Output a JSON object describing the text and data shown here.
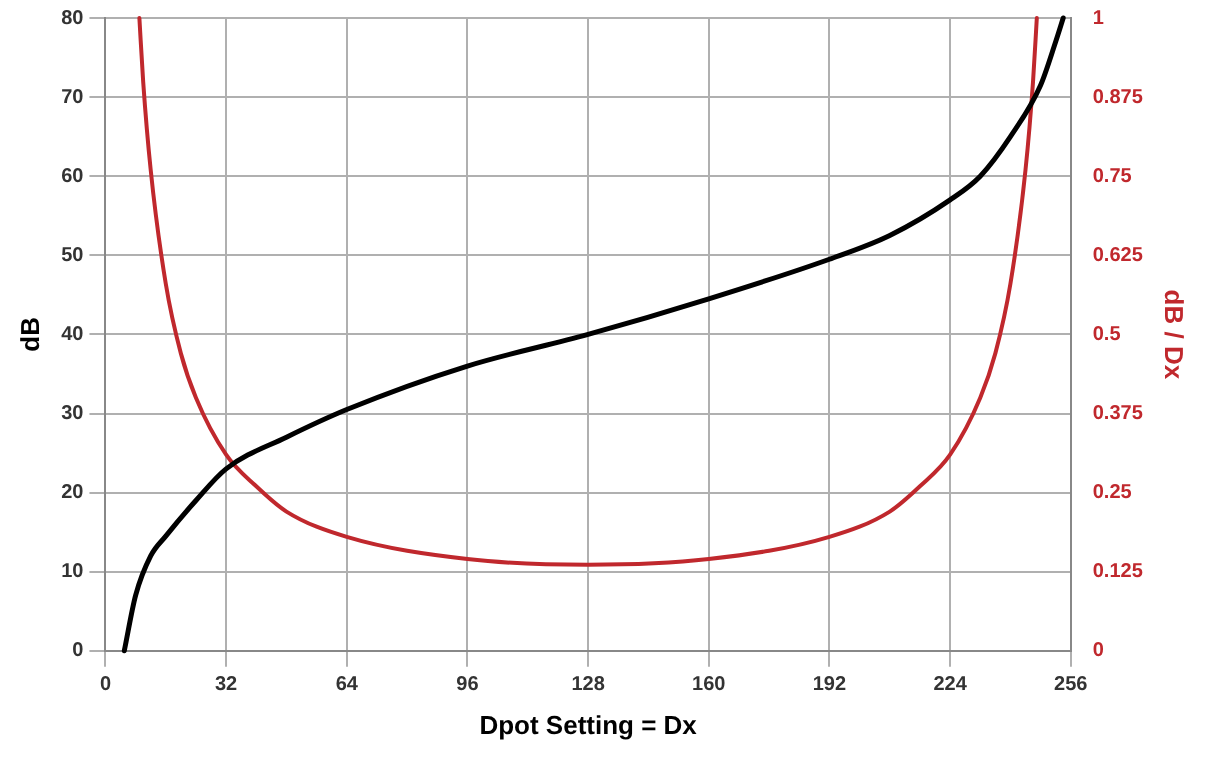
{
  "chart_data": {
    "type": "line",
    "xlabel": "Dpot Setting = Dx",
    "ylabel": "dB",
    "y2label": "dB / Dx",
    "xlim": [
      0,
      256
    ],
    "xticks": [
      0,
      32,
      64,
      96,
      128,
      160,
      192,
      224,
      256
    ],
    "ylim": [
      0,
      80
    ],
    "yticks": [
      0,
      10,
      20,
      30,
      40,
      50,
      60,
      70,
      80
    ],
    "y2lim": [
      0,
      1
    ],
    "y2ticks": [
      0,
      0.125,
      0.25,
      0.375,
      0.5,
      0.625,
      0.75,
      0.875,
      1
    ],
    "grid": true,
    "legend": false,
    "marker": "none",
    "line_style": "solid",
    "series": [
      {
        "color": "#000000",
        "x": [
          5,
          8,
          12,
          16,
          24,
          32,
          48,
          64,
          96,
          128,
          160,
          192,
          208,
          224,
          232,
          240,
          248,
          252,
          254
        ],
        "values": [
          0,
          7,
          12,
          14.5,
          19,
          23,
          27,
          30.5,
          36,
          40,
          44.5,
          49.5,
          52.5,
          57,
          60,
          65,
          71.5,
          77,
          80
        ]
      },
      {
        "color": "#c0282d",
        "axis": "y2",
        "x": [
          9,
          10,
          12,
          16,
          20,
          24,
          32,
          40,
          48,
          64,
          96,
          128,
          160,
          192,
          208,
          216,
          224,
          232,
          236,
          240,
          244,
          246,
          247
        ],
        "values": [
          1,
          0.9,
          0.76,
          0.58,
          0.47,
          0.4,
          0.31,
          0.26,
          0.22,
          0.18,
          0.145,
          0.136,
          0.145,
          0.18,
          0.22,
          0.26,
          0.31,
          0.4,
          0.47,
          0.58,
          0.76,
          0.9,
          1
        ]
      }
    ]
  }
}
